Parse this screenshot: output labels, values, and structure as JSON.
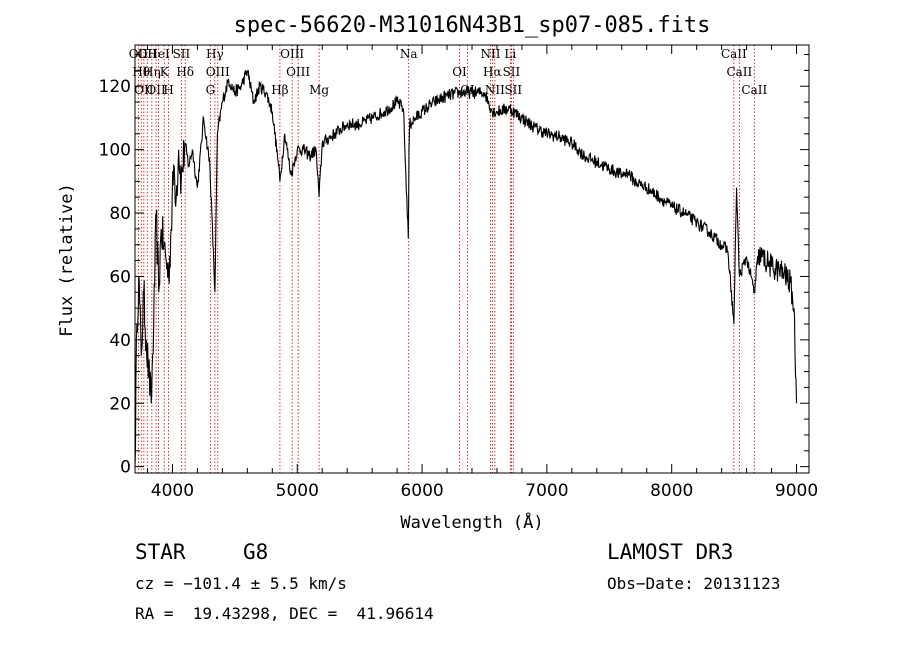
{
  "chart_data": {
    "type": "line",
    "title": "spec-56620-M31016N43B1_sp07-085.fits",
    "xlabel": "Wavelength (Å)",
    "ylabel": "Flux (relative)",
    "xlim": [
      3700,
      9100
    ],
    "ylim": [
      -2,
      133
    ],
    "xticks": [
      4000,
      5000,
      6000,
      7000,
      8000,
      9000
    ],
    "yticks": [
      0,
      20,
      40,
      60,
      80,
      100,
      120
    ],
    "grid": false,
    "series": [
      {
        "x": [
          3700,
          3715,
          3730,
          3750,
          3770,
          3790,
          3810,
          3830,
          3850,
          3870,
          3890,
          3910,
          3930,
          3950,
          3970,
          3990,
          4010,
          4030,
          4050,
          4070,
          4100,
          4130,
          4160,
          4200,
          4250,
          4300,
          4340,
          4360,
          4400,
          4450,
          4500,
          4550,
          4600,
          4650,
          4700,
          4750,
          4800,
          4850,
          4861,
          4900,
          4950,
          5000,
          5050,
          5100,
          5150,
          5175,
          5200,
          5300,
          5400,
          5500,
          5600,
          5700,
          5800,
          5850,
          5890,
          5895,
          5900,
          5950,
          6000,
          6100,
          6200,
          6300,
          6400,
          6500,
          6563,
          6600,
          6700,
          6800,
          6900,
          7000,
          7100,
          7200,
          7300,
          7400,
          7500,
          7600,
          7650,
          7700,
          7800,
          7900,
          8000,
          8100,
          8200,
          8300,
          8400,
          8450,
          8498,
          8520,
          8542,
          8600,
          8662,
          8700,
          8800,
          8900,
          8950,
          8980,
          9000
        ],
        "y": [
          0,
          45,
          60,
          35,
          55,
          40,
          30,
          20,
          45,
          80,
          55,
          75,
          70,
          65,
          60,
          75,
          95,
          85,
          100,
          90,
          102,
          95,
          100,
          88,
          110,
          95,
          55,
          105,
          115,
          122,
          118,
          120,
          125,
          115,
          120,
          118,
          112,
          95,
          90,
          105,
          92,
          100,
          100,
          98,
          100,
          85,
          102,
          105,
          108,
          108,
          110,
          112,
          115,
          113,
          72,
          100,
          108,
          110,
          112,
          115,
          117,
          118,
          118,
          118,
          112,
          112,
          113,
          110,
          107,
          105,
          104,
          102,
          98,
          96,
          94,
          92,
          93,
          90,
          88,
          85,
          82,
          80,
          77,
          74,
          70,
          68,
          45,
          88,
          60,
          66,
          55,
          67,
          63,
          61,
          58,
          50,
          20
        ]
      }
    ],
    "lines": [
      {
        "w": 3727,
        "label": "OII"
      },
      {
        "w": 3750,
        "label": "Hθ"
      },
      {
        "w": 3771,
        "label": "OII"
      },
      {
        "w": 3798,
        "label": "OII"
      },
      {
        "w": 3835,
        "label": "Hη"
      },
      {
        "w": 3869,
        "label": "OII"
      },
      {
        "w": 3889,
        "label": "HeI"
      },
      {
        "w": 3934,
        "label": "K"
      },
      {
        "w": 3969,
        "label": "H"
      },
      {
        "w": 4072,
        "label": "SII"
      },
      {
        "w": 4102,
        "label": "Hδ"
      },
      {
        "w": 4304,
        "label": "G"
      },
      {
        "w": 4340,
        "label": "Hγ"
      },
      {
        "w": 4363,
        "label": "OIII"
      },
      {
        "w": 4861,
        "label": "Hβ"
      },
      {
        "w": 4959,
        "label": "OIII"
      },
      {
        "w": 5007,
        "label": "OIII"
      },
      {
        "w": 5175,
        "label": "Mg"
      },
      {
        "w": 5893,
        "label": "Na"
      },
      {
        "w": 6300,
        "label": "OI"
      },
      {
        "w": 6364,
        "label": "OI"
      },
      {
        "w": 6548,
        "label": "NII"
      },
      {
        "w": 6563,
        "label": "Hα"
      },
      {
        "w": 6583,
        "label": "NII"
      },
      {
        "w": 6707,
        "label": "Li"
      },
      {
        "w": 6716,
        "label": "SII"
      },
      {
        "w": 6731,
        "label": "SII"
      },
      {
        "w": 8498,
        "label": "CaII"
      },
      {
        "w": 8542,
        "label": "CaII"
      },
      {
        "w": 8662,
        "label": "CaII"
      }
    ]
  },
  "info": {
    "class": "STAR",
    "subclass": "G8",
    "survey": "LAMOST DR3",
    "cz": "cz = −101.4 ± 5.5 km/s",
    "obs_date": "Obs−Date: 20131123",
    "radec": "RA =  19.43298, DEC =  41.96614"
  },
  "colors": {
    "spectrum": "#000000",
    "line_marker": "#c00000"
  }
}
